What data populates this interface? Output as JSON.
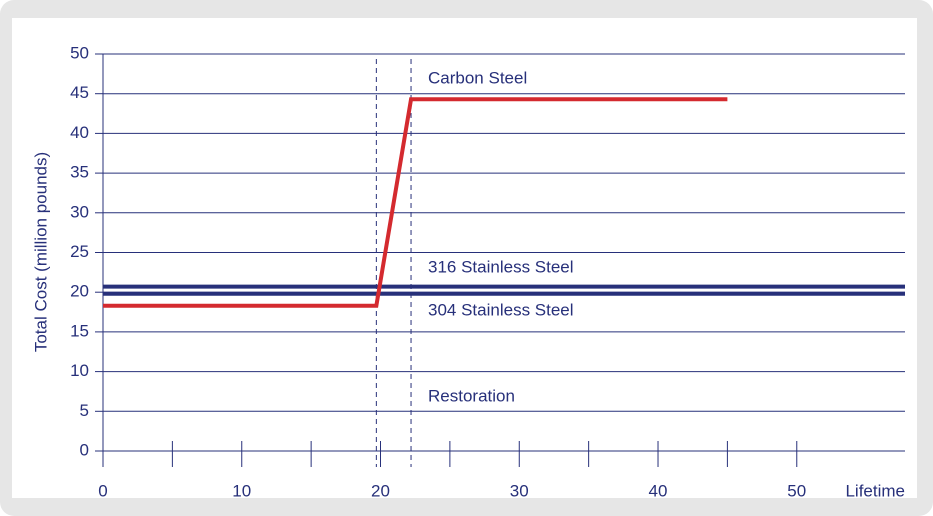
{
  "chart_data": {
    "type": "line",
    "ylabel": "Total Cost (million pounds)",
    "xlabel": "Lifetime",
    "xlim": [
      0,
      57.8
    ],
    "ylim": [
      0,
      50
    ],
    "xticks": [
      0,
      10,
      20,
      30,
      40,
      50
    ],
    "xticks_minor": [
      5,
      15,
      25,
      35,
      45
    ],
    "yticks": [
      0,
      5,
      10,
      15,
      20,
      25,
      30,
      35,
      40,
      45,
      50
    ],
    "grid": true,
    "dashed_x": [
      19.7,
      22.2
    ],
    "series": [
      {
        "name": "Carbon Steel",
        "color": "#d42a2f",
        "x": [
          0,
          19.7,
          22.2,
          45
        ],
        "values": [
          18.3,
          18.3,
          44.3,
          44.3
        ]
      },
      {
        "name": "316 Stainless Steel",
        "color": "#27307a",
        "x": [
          0,
          57.8
        ],
        "values": [
          20.7,
          20.7
        ]
      },
      {
        "name": "304 Stainless Steel",
        "color": "#27307a",
        "x": [
          0,
          57.8
        ],
        "values": [
          19.8,
          19.8
        ]
      }
    ],
    "annotations": [
      "Restoration"
    ]
  }
}
